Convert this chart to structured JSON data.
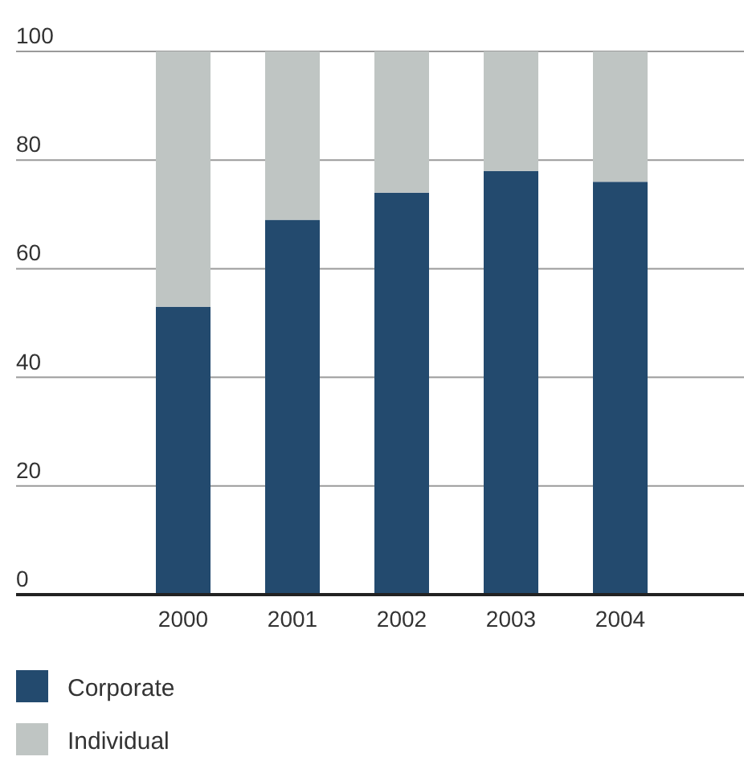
{
  "chart_data": {
    "type": "bar",
    "stacked": true,
    "categories": [
      "2000",
      "2001",
      "2002",
      "2003",
      "2004"
    ],
    "series": [
      {
        "name": "Corporate",
        "color": "#234a6e",
        "values": [
          53,
          69,
          74,
          78,
          76
        ]
      },
      {
        "name": "Individual",
        "color": "#bfc5c3",
        "values": [
          47,
          31,
          26,
          22,
          24
        ]
      }
    ],
    "ylim": [
      0,
      100
    ],
    "yticks": [
      0,
      20,
      40,
      60,
      80,
      100
    ],
    "grid": "y",
    "legend": "bottom"
  }
}
